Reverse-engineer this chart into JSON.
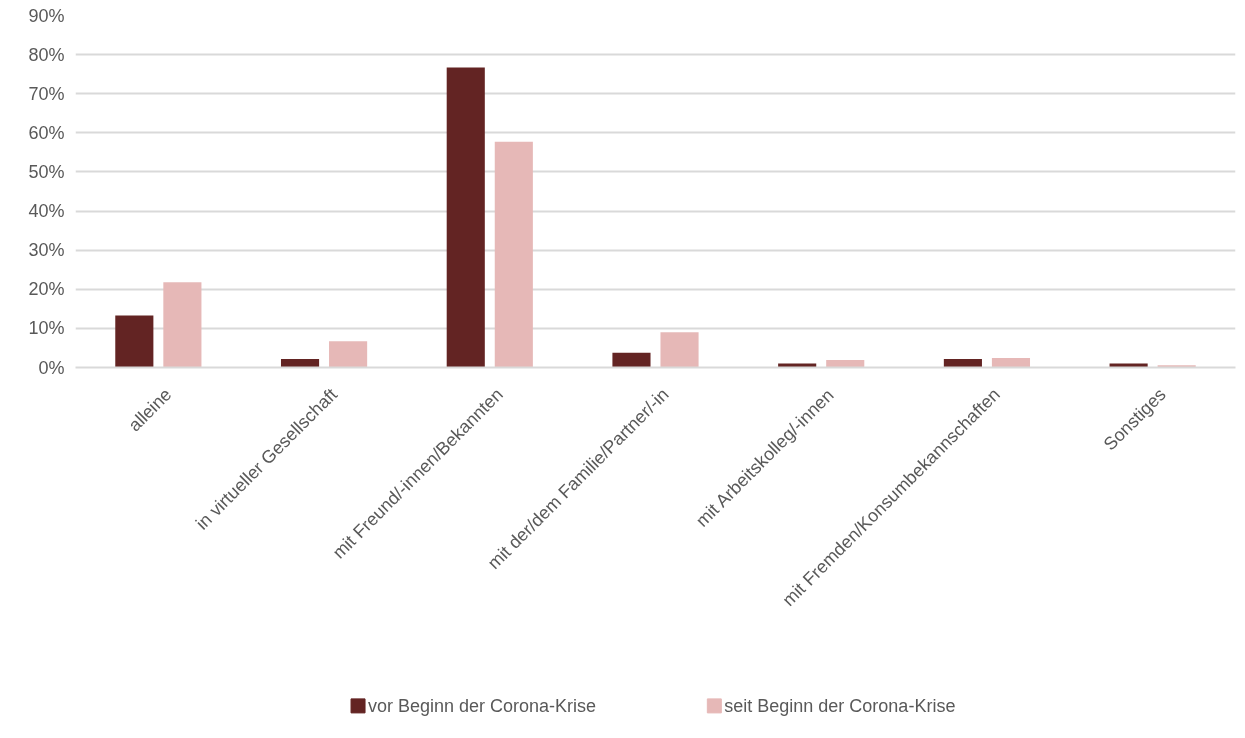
{
  "chart_data": {
    "type": "bar",
    "categories": [
      "alleine",
      "in virtueller Gesellschaft",
      "mit Freund/-innen/Bekannten",
      "mit der/dem Familie/Partner/-in",
      "mit Arbeitskolleg/-innen",
      "mit Fremden/Konsumbekannschaften",
      "Sonstiges"
    ],
    "series": [
      {
        "name": "vor Beginn der Corona-Krise",
        "color": "#632423",
        "values": [
          13.3,
          2.2,
          76.7,
          3.8,
          1.0,
          2.2,
          1.0
        ]
      },
      {
        "name": "seit Beginn der Corona-Krise",
        "color": "#e6b8b7",
        "values": [
          21.8,
          6.7,
          57.7,
          9.0,
          1.9,
          2.4,
          0.6
        ]
      }
    ],
    "ylim": [
      0,
      90
    ],
    "yticks": [
      {
        "value": 0,
        "label": "0%"
      },
      {
        "value": 10,
        "label": "10%"
      },
      {
        "value": 20,
        "label": "20%"
      },
      {
        "value": 30,
        "label": "30%"
      },
      {
        "value": 40,
        "label": "40%"
      },
      {
        "value": 50,
        "label": "50%"
      },
      {
        "value": 60,
        "label": "60%"
      },
      {
        "value": 70,
        "label": "70%"
      },
      {
        "value": 80,
        "label": "80%"
      },
      {
        "value": 90,
        "label": "90%"
      }
    ],
    "grid": "y",
    "legend": "bottom"
  }
}
